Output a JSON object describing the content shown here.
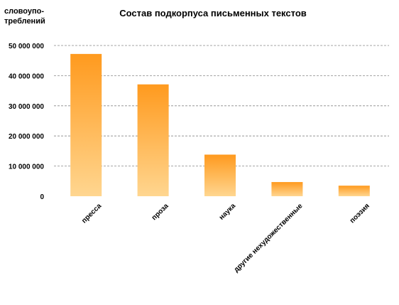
{
  "chart_data": {
    "type": "bar",
    "title": "Состав подкорпуса  письменных  текстов",
    "ylabel_lines": [
      "словоупо-",
      "треблений"
    ],
    "xlabel": "",
    "categories": [
      "пресса",
      "проза",
      "наука",
      "другие нехудожественные",
      "поэзия"
    ],
    "values": [
      47200000,
      37100000,
      13800000,
      4700000,
      3500000
    ],
    "ylim": [
      0,
      50000000
    ],
    "y_ticks": [
      0,
      10000000,
      20000000,
      30000000,
      40000000,
      50000000
    ],
    "y_tick_labels": [
      "0",
      "10 000 000",
      "20 000 000",
      "30 000 000",
      "40 000 000",
      "50 000 000"
    ],
    "grid": true,
    "legend": "none",
    "colors": {
      "bar_top": "#FF9A1E",
      "bar_bottom": "#FFD690",
      "grid": "#888888"
    }
  }
}
